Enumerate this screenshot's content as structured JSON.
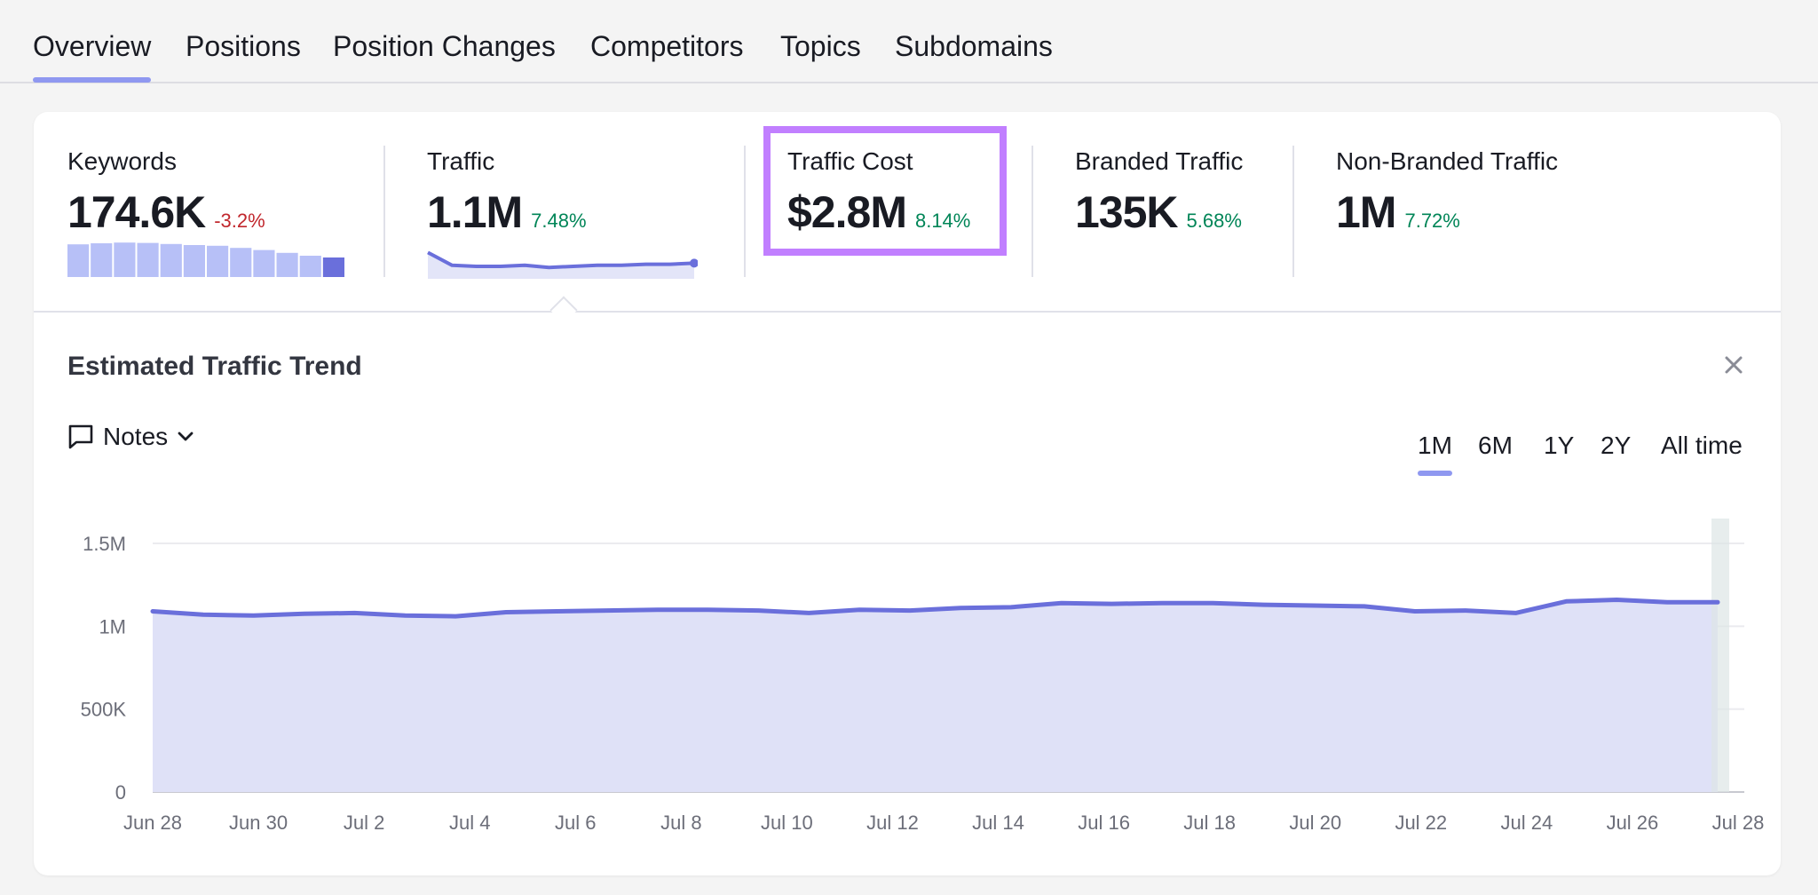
{
  "tabs": [
    {
      "label": "Overview",
      "active": true
    },
    {
      "label": "Positions"
    },
    {
      "label": "Position Changes"
    },
    {
      "label": "Competitors"
    },
    {
      "label": "Topics"
    },
    {
      "label": "Subdomains"
    }
  ],
  "metrics": [
    {
      "label": "Keywords",
      "value": "174.6K",
      "change": "-3.2%",
      "change_type": "negative"
    },
    {
      "label": "Traffic",
      "value": "1.1M",
      "change": "7.48%",
      "change_type": "positive"
    },
    {
      "label": "Traffic Cost",
      "value": "$2.8M",
      "change": "8.14%",
      "change_type": "positive",
      "highlighted": true
    },
    {
      "label": "Branded Traffic",
      "value": "135K",
      "change": "5.68%",
      "change_type": "positive"
    },
    {
      "label": "Non-Branded Traffic",
      "value": "1M",
      "change": "7.72%",
      "change_type": "positive"
    }
  ],
  "keywords_sparkbar": [
    0.92,
    0.95,
    0.97,
    0.96,
    0.93,
    0.9,
    0.88,
    0.82,
    0.76,
    0.68,
    0.6,
    0.55
  ],
  "traffic_sparkline": [
    1.18,
    1.06,
    1.05,
    1.05,
    1.06,
    1.04,
    1.05,
    1.06,
    1.06,
    1.07,
    1.07,
    1.08
  ],
  "trend": {
    "title": "Estimated Traffic Trend",
    "notes_label": "Notes",
    "ranges": [
      "1M",
      "6M",
      "1Y",
      "2Y",
      "All time"
    ],
    "active_range": "1M"
  },
  "colors": {
    "accent": "#6a6fdb",
    "area_fill": "#dfe1f7",
    "tab_underline": "#8f98f0",
    "highlight_border": "#c17fff",
    "positive": "#008557",
    "negative": "#c1272d"
  },
  "chart_data": {
    "type": "area",
    "title": "Estimated Traffic Trend",
    "x_tick_labels": [
      "Jun 28",
      "Jun 30",
      "Jul 2",
      "Jul 4",
      "Jul 6",
      "Jul 8",
      "Jul 10",
      "Jul 12",
      "Jul 14",
      "Jul 16",
      "Jul 18",
      "Jul 20",
      "Jul 22",
      "Jul 24",
      "Jul 26",
      "Jul 28"
    ],
    "y_tick_labels": [
      "0",
      "500K",
      "1M",
      "1.5M"
    ],
    "y_ticks": [
      0,
      500000,
      1000000,
      1500000
    ],
    "ylim": [
      0,
      1500000
    ],
    "grid": true,
    "series": [
      {
        "values": [
          1090000,
          1070000,
          1065000,
          1075000,
          1080000,
          1065000,
          1060000,
          1085000,
          1090000,
          1095000,
          1100000,
          1100000,
          1095000,
          1080000,
          1100000,
          1095000,
          1110000,
          1115000,
          1140000,
          1135000,
          1140000,
          1140000,
          1130000,
          1125000,
          1120000,
          1090000,
          1095000,
          1080000,
          1150000,
          1160000,
          1145000,
          1145000
        ]
      }
    ]
  }
}
